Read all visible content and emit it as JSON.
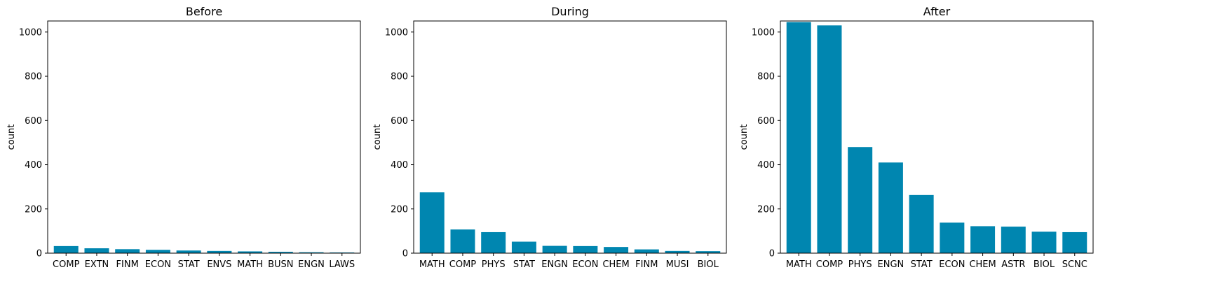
{
  "chart_data": [
    {
      "type": "bar",
      "title": "Before",
      "xlabel": "",
      "ylabel": "count",
      "ylim": [
        0,
        1050
      ],
      "yticks": [
        0,
        200,
        400,
        600,
        800,
        1000
      ],
      "categories": [
        "COMP",
        "EXTN",
        "FINM",
        "ECON",
        "STAT",
        "ENVS",
        "MATH",
        "BUSN",
        "ENGN",
        "LAWS"
      ],
      "values": [
        32,
        22,
        18,
        15,
        12,
        10,
        8,
        6,
        4,
        3
      ],
      "color": "#0086b0",
      "grid": false
    },
    {
      "type": "bar",
      "title": "During",
      "xlabel": "",
      "ylabel": "count",
      "ylim": [
        0,
        1050
      ],
      "yticks": [
        0,
        200,
        400,
        600,
        800,
        1000
      ],
      "categories": [
        "MATH",
        "COMP",
        "PHYS",
        "STAT",
        "ENGN",
        "ECON",
        "CHEM",
        "FINM",
        "MUSI",
        "BIOL"
      ],
      "values": [
        275,
        107,
        95,
        52,
        33,
        32,
        28,
        17,
        10,
        9
      ],
      "color": "#0086b0",
      "grid": false
    },
    {
      "type": "bar",
      "title": "After",
      "xlabel": "",
      "ylabel": "count",
      "ylim": [
        0,
        1050
      ],
      "yticks": [
        0,
        200,
        400,
        600,
        800,
        1000
      ],
      "categories": [
        "MATH",
        "COMP",
        "PHYS",
        "ENGN",
        "STAT",
        "ECON",
        "CHEM",
        "ASTR",
        "BIOL",
        "SCNC"
      ],
      "values": [
        1045,
        1030,
        480,
        410,
        263,
        138,
        122,
        120,
        97,
        95
      ],
      "color": "#0086b0",
      "grid": false
    }
  ]
}
